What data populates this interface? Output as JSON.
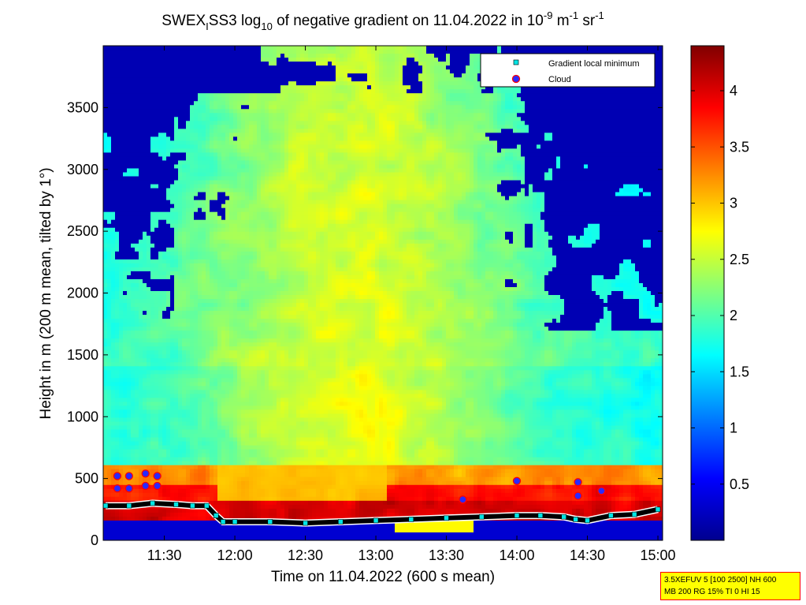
{
  "chart_data": {
    "type": "heatmap",
    "title_parts": {
      "a": "SWEX",
      "sub1": "I",
      "b": "SS3 log",
      "sub2": "10",
      "c": " of negative gradient on 11.04.2022 in 10",
      "sup1": "-9",
      "d": " m",
      "sup2": "-1",
      "e": " sr",
      "sup3": "-1"
    },
    "xlabel": "Time on 11.04.2022 (600 s mean)",
    "ylabel": "Height in m (200 m mean, tilted by 1°)",
    "x_range": [
      "11:04",
      "15:02"
    ],
    "ylim": [
      0,
      4000
    ],
    "x_ticks": [
      "11:30",
      "12:00",
      "12:30",
      "13:00",
      "13:30",
      "14:00",
      "14:30",
      "15:00"
    ],
    "y_ticks": [
      0,
      500,
      1000,
      1500,
      2000,
      2500,
      3000,
      3500
    ],
    "colorbar": {
      "min": 0,
      "max": 4.4,
      "ticks": [
        "0.5",
        "1",
        "1.5",
        "2",
        "2.5",
        "3",
        "3.5",
        "4"
      ],
      "colormap": "jet"
    },
    "legend": {
      "placement": "top-right",
      "entries": [
        {
          "label": "Gradient local minimum",
          "marker": "square",
          "color": "#00e5e5"
        },
        {
          "label": "Cloud",
          "marker": "circle",
          "color": "#2a2aff",
          "edge": "#ff0000"
        }
      ]
    },
    "series": [
      {
        "name": "Gradient local minimum",
        "x": [
          "11:05",
          "11:15",
          "11:25",
          "11:35",
          "11:42",
          "11:48",
          "11:52",
          "11:55",
          "12:00",
          "12:15",
          "12:30",
          "12:45",
          "13:00",
          "13:15",
          "13:30",
          "13:45",
          "14:00",
          "14:10",
          "14:20",
          "14:25",
          "14:30",
          "14:40",
          "14:50",
          "15:00"
        ],
        "y": [
          280,
          280,
          300,
          290,
          280,
          280,
          200,
          150,
          150,
          150,
          140,
          150,
          160,
          170,
          180,
          190,
          200,
          200,
          190,
          170,
          160,
          200,
          210,
          250
        ]
      },
      {
        "name": "Cloud",
        "x": [
          "11:10",
          "11:15",
          "11:10",
          "11:15",
          "11:22",
          "11:27",
          "11:22",
          "11:27",
          "13:37",
          "14:00",
          "14:26",
          "14:26",
          "14:36"
        ],
        "y": [
          520,
          520,
          420,
          420,
          540,
          520,
          440,
          440,
          330,
          480,
          470,
          360,
          400
        ]
      }
    ]
  },
  "info_box": {
    "line1": "3.5XEFUV 5 [100 2500] NH 600",
    "line2": "MB 200 RG 15% TI 0 HI 15"
  }
}
